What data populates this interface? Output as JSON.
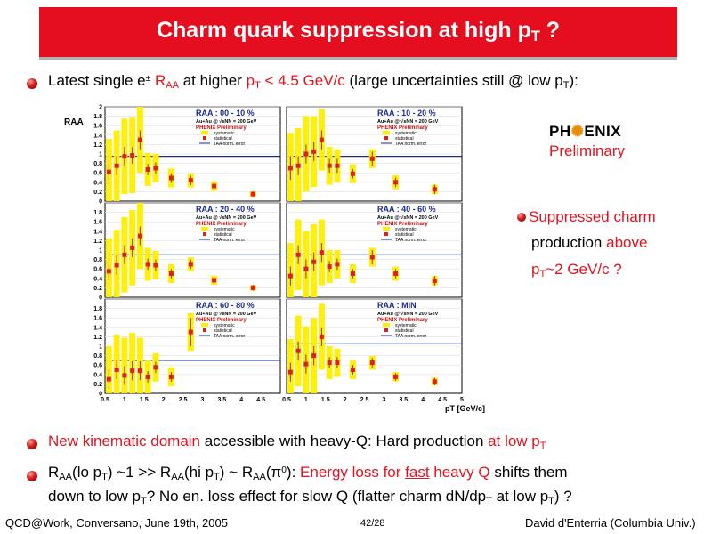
{
  "title": {
    "main": "Charm quark suppression at high p",
    "sub": "T",
    "tail": " ?"
  },
  "bullet1": {
    "p1": "Latest single e",
    "sup": "±",
    "p2": " R",
    "sub_aa": "AA",
    "p3": " at higher ",
    "p4": "p",
    "p5": " < 4.5 GeV/c",
    "p6": " (large uncertainties still @ low p",
    "p7": "):"
  },
  "phenix": {
    "logo_left": "PH",
    "logo_right": "ENIX",
    "preliminary": "Preliminary"
  },
  "side_note": {
    "line1": " Suppressed charm",
    "line2a": "production ",
    "line2b": "above",
    "line3": "p",
    "line3b": "~2 GeV/c ?"
  },
  "bullet2": {
    "p1": "New kinematic domain",
    "p2": " accessible with heavy-Q: Hard production ",
    "p3": "at low p",
    "sub": "T"
  },
  "bullet3": {
    "l1a": "R",
    "l1b": "(lo p",
    "l1c": ") ~1 >> R",
    "l1d": "(hi p",
    "l1e": ") ~ R",
    "l1f": "(π",
    "l1g": "0",
    "l1h": "):  ",
    "l1i": "Energy loss for ",
    "l1j": "fast",
    "l1k": " heavy Q",
    "l1l": " shifts them",
    "l2a": "down to low p",
    "l2b": "? No en. loss effect for slow Q (flatter charm dN/dp",
    "l2c": " at low p",
    "l2d": ") ?"
  },
  "footer": {
    "left": "QCD@Work, Conversano, June 19th, 2005",
    "center": "42/28",
    "right": "David d'Enterria (Columbia Univ.)"
  },
  "colors": {
    "title_bg": "#e50e1f",
    "accent_red": "#e4121f",
    "data_marker": "#e21f1f",
    "syst_band": "#ffee00",
    "ref_line": "#1b2a90",
    "label_blue": "#1b2a90"
  },
  "chart_data": {
    "type": "scatter",
    "ylabel": "RAA",
    "ylabel_sub": "AA",
    "xlabel": "pT [GeV/c]",
    "xlim": [
      0.5,
      5
    ],
    "ylim": [
      0,
      2
    ],
    "x_ticks": [
      "0.5",
      "1",
      "1.5",
      "2",
      "2.5",
      "3",
      "3.5",
      "4",
      "4.5",
      "5"
    ],
    "y_ticks": [
      "0",
      "0.2",
      "0.4",
      "0.6",
      "0.8",
      "1",
      "1.2",
      "1.4",
      "1.6",
      "1.8",
      "2"
    ],
    "common_labels": {
      "system": "Au+Au @ √sNN = 200 GeV",
      "experiment": "PHENIX Preliminary",
      "legend": [
        "systematic",
        "statistical",
        "TAA norm. error"
      ]
    },
    "panels": [
      {
        "centrality": "00 - 10 %",
        "ref_line": 0.95,
        "x": [
          0.6,
          0.8,
          1.0,
          1.2,
          1.4,
          1.6,
          1.8,
          2.2,
          2.7,
          3.3,
          4.3
        ],
        "y": [
          0.62,
          0.75,
          0.95,
          0.97,
          1.3,
          0.67,
          0.7,
          0.49,
          0.44,
          0.32,
          0.15
        ],
        "stat": [
          0.25,
          0.2,
          0.2,
          0.18,
          0.2,
          0.12,
          0.12,
          0.1,
          0.1,
          0.08,
          0.05
        ],
        "syst": [
          0.7,
          0.75,
          0.8,
          0.8,
          0.7,
          0.35,
          0.3,
          0.2,
          0.15,
          0.1,
          0.06
        ]
      },
      {
        "centrality": "10 - 20 %",
        "ref_line": 0.95,
        "x": [
          0.6,
          0.8,
          1.0,
          1.2,
          1.4,
          1.6,
          1.8,
          2.2,
          2.7,
          3.3,
          4.3
        ],
        "y": [
          0.7,
          0.75,
          1.0,
          1.05,
          1.3,
          0.75,
          0.75,
          0.58,
          0.9,
          0.4,
          0.25
        ],
        "stat": [
          0.25,
          0.2,
          0.2,
          0.2,
          0.2,
          0.15,
          0.15,
          0.1,
          0.15,
          0.1,
          0.1
        ],
        "syst": [
          0.75,
          0.8,
          0.8,
          0.75,
          0.65,
          0.4,
          0.35,
          0.2,
          0.2,
          0.15,
          0.1
        ]
      },
      {
        "centrality": "20 - 40 %",
        "ref_line": 0.9,
        "x": [
          0.6,
          0.8,
          1.0,
          1.2,
          1.4,
          1.6,
          1.8,
          2.2,
          2.7,
          3.3,
          4.3
        ],
        "y": [
          0.55,
          0.68,
          0.9,
          1.05,
          1.3,
          0.7,
          0.68,
          0.5,
          0.7,
          0.36,
          0.2
        ],
        "stat": [
          0.2,
          0.2,
          0.2,
          0.2,
          0.2,
          0.12,
          0.12,
          0.1,
          0.1,
          0.08,
          0.06
        ],
        "syst": [
          0.7,
          0.75,
          0.8,
          0.8,
          0.7,
          0.35,
          0.3,
          0.2,
          0.15,
          0.1,
          0.06
        ]
      },
      {
        "centrality": "40 - 60 %",
        "ref_line": 0.9,
        "x": [
          0.6,
          0.8,
          1.0,
          1.2,
          1.4,
          1.6,
          1.8,
          2.2,
          2.7,
          3.3,
          4.3
        ],
        "y": [
          0.45,
          0.9,
          0.6,
          0.75,
          0.95,
          0.65,
          0.7,
          0.5,
          0.85,
          0.5,
          0.35
        ],
        "stat": [
          0.2,
          0.2,
          0.2,
          0.2,
          0.2,
          0.12,
          0.12,
          0.1,
          0.15,
          0.1,
          0.1
        ],
        "syst": [
          0.7,
          0.75,
          0.8,
          0.8,
          0.7,
          0.35,
          0.3,
          0.2,
          0.2,
          0.15,
          0.1
        ]
      },
      {
        "centrality": "60 - 80 %",
        "ref_line": 0.7,
        "x": [
          0.6,
          0.8,
          1.0,
          1.2,
          1.4,
          1.6,
          1.8,
          2.2,
          2.7
        ],
        "y": [
          0.3,
          0.5,
          0.38,
          0.48,
          0.48,
          0.35,
          0.55,
          0.35,
          1.3
        ],
        "stat": [
          0.2,
          0.2,
          0.2,
          0.2,
          0.2,
          0.12,
          0.12,
          0.1,
          0.3
        ],
        "syst": [
          0.7,
          0.75,
          0.8,
          0.8,
          0.7,
          0.35,
          0.3,
          0.2,
          0.4
        ]
      },
      {
        "centrality": "MIN",
        "ref_line": 1.05,
        "x": [
          0.6,
          0.8,
          1.0,
          1.2,
          1.4,
          1.6,
          1.8,
          2.2,
          2.7,
          3.3,
          4.3
        ],
        "y": [
          0.45,
          0.9,
          0.62,
          0.8,
          1.2,
          0.65,
          0.65,
          0.5,
          0.65,
          0.35,
          0.25
        ],
        "stat": [
          0.2,
          0.2,
          0.2,
          0.2,
          0.2,
          0.12,
          0.12,
          0.1,
          0.1,
          0.08,
          0.08
        ],
        "syst": [
          0.7,
          0.75,
          0.8,
          0.8,
          0.7,
          0.35,
          0.3,
          0.2,
          0.15,
          0.1,
          0.08
        ]
      }
    ]
  }
}
